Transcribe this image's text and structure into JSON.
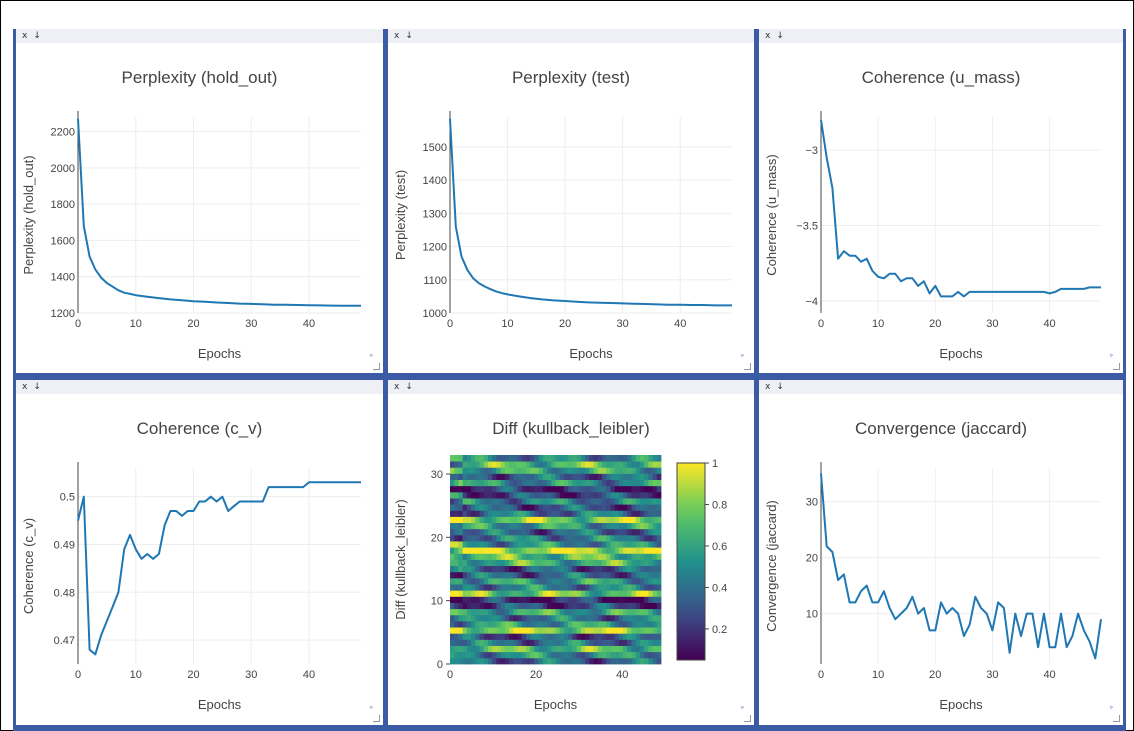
{
  "toolbar": {
    "close_label": "x",
    "pin_label": "↓"
  },
  "colors": {
    "line": "#1f77b4",
    "panel_border": "#3b5ba5",
    "grid": "#eeeeee"
  },
  "chart_data": [
    {
      "type": "line",
      "title": "Perplexity (hold_out)",
      "xlabel": "Epochs",
      "ylabel": "Perplexity (hold_out)",
      "xlim": [
        0,
        49
      ],
      "ylim": [
        1200,
        2280
      ],
      "xticks": [
        0,
        10,
        20,
        30,
        40
      ],
      "yticks": [
        1200,
        1400,
        1600,
        1800,
        2000,
        2200
      ],
      "grid": true,
      "x": [
        0,
        1,
        2,
        3,
        4,
        5,
        6,
        7,
        8,
        9,
        10,
        12,
        14,
        16,
        18,
        20,
        22,
        24,
        26,
        28,
        30,
        32,
        34,
        36,
        38,
        40,
        42,
        44,
        46,
        48,
        49
      ],
      "y": [
        2270,
        1680,
        1510,
        1440,
        1395,
        1365,
        1345,
        1325,
        1312,
        1305,
        1298,
        1290,
        1282,
        1275,
        1270,
        1265,
        1262,
        1258,
        1255,
        1252,
        1250,
        1248,
        1246,
        1245,
        1244,
        1243,
        1242,
        1241,
        1240,
        1240,
        1240
      ]
    },
    {
      "type": "line",
      "title": "Perplexity (test)",
      "xlabel": "Epochs",
      "ylabel": "Perplexity (test)",
      "xlim": [
        0,
        49
      ],
      "ylim": [
        1000,
        1590
      ],
      "xticks": [
        0,
        10,
        20,
        30,
        40
      ],
      "yticks": [
        1000,
        1100,
        1200,
        1300,
        1400,
        1500
      ],
      "grid": true,
      "x": [
        0,
        1,
        2,
        3,
        4,
        5,
        6,
        7,
        8,
        9,
        10,
        12,
        14,
        16,
        18,
        20,
        22,
        24,
        26,
        28,
        30,
        32,
        34,
        36,
        38,
        40,
        42,
        44,
        46,
        48,
        49
      ],
      "y": [
        1585,
        1260,
        1170,
        1130,
        1105,
        1090,
        1080,
        1072,
        1065,
        1060,
        1056,
        1050,
        1045,
        1041,
        1038,
        1036,
        1034,
        1032,
        1031,
        1030,
        1029,
        1028,
        1027,
        1026,
        1025,
        1025,
        1024,
        1024,
        1023,
        1023,
        1023
      ]
    },
    {
      "type": "line",
      "title": "Coherence (u_mass)",
      "xlabel": "Epochs",
      "ylabel": "Coherence (u_mass)",
      "xlim": [
        0,
        49
      ],
      "ylim": [
        -4.08,
        -2.78
      ],
      "xticks": [
        0,
        10,
        20,
        30,
        40
      ],
      "yticks": [
        -4,
        -3.5,
        -3
      ],
      "ytick_labels": [
        "−4",
        "−3.5",
        "−3"
      ],
      "grid": true,
      "x": [
        0,
        1,
        2,
        3,
        4,
        5,
        6,
        7,
        8,
        9,
        10,
        11,
        12,
        13,
        14,
        15,
        16,
        17,
        18,
        19,
        20,
        21,
        22,
        23,
        24,
        25,
        26,
        27,
        28,
        29,
        30,
        31,
        32,
        33,
        34,
        35,
        36,
        37,
        38,
        39,
        40,
        41,
        42,
        43,
        44,
        45,
        46,
        47,
        48,
        49
      ],
      "y": [
        -2.8,
        -3.05,
        -3.25,
        -3.72,
        -3.67,
        -3.7,
        -3.7,
        -3.74,
        -3.72,
        -3.8,
        -3.84,
        -3.85,
        -3.82,
        -3.82,
        -3.87,
        -3.85,
        -3.85,
        -3.9,
        -3.87,
        -3.95,
        -3.9,
        -3.97,
        -3.97,
        -3.97,
        -3.94,
        -3.97,
        -3.94,
        -3.94,
        -3.94,
        -3.94,
        -3.94,
        -3.94,
        -3.94,
        -3.94,
        -3.94,
        -3.94,
        -3.94,
        -3.94,
        -3.94,
        -3.94,
        -3.95,
        -3.94,
        -3.92,
        -3.92,
        -3.92,
        -3.92,
        -3.92,
        -3.91,
        -3.91,
        -3.91
      ]
    },
    {
      "type": "line",
      "title": "Coherence (c_v)",
      "xlabel": "Epochs",
      "ylabel": "Coherence (c_v)",
      "xlim": [
        0,
        49
      ],
      "ylim": [
        0.465,
        0.506
      ],
      "xticks": [
        0,
        10,
        20,
        30,
        40
      ],
      "yticks": [
        0.47,
        0.48,
        0.49,
        0.5
      ],
      "grid": true,
      "x": [
        0,
        1,
        2,
        3,
        4,
        5,
        6,
        7,
        8,
        9,
        10,
        11,
        12,
        13,
        14,
        15,
        16,
        17,
        18,
        19,
        20,
        21,
        22,
        23,
        24,
        25,
        26,
        27,
        28,
        29,
        30,
        31,
        32,
        33,
        34,
        35,
        36,
        37,
        38,
        39,
        40,
        41,
        42,
        43,
        44,
        45,
        46,
        47,
        48,
        49
      ],
      "y": [
        0.495,
        0.5,
        0.468,
        0.467,
        0.471,
        0.474,
        0.477,
        0.48,
        0.489,
        0.492,
        0.489,
        0.487,
        0.488,
        0.487,
        0.488,
        0.494,
        0.497,
        0.497,
        0.496,
        0.497,
        0.497,
        0.499,
        0.499,
        0.5,
        0.499,
        0.5,
        0.497,
        0.498,
        0.499,
        0.499,
        0.499,
        0.499,
        0.499,
        0.502,
        0.502,
        0.502,
        0.502,
        0.502,
        0.502,
        0.502,
        0.503,
        0.503,
        0.503,
        0.503,
        0.503,
        0.503,
        0.503,
        0.503,
        0.503,
        0.503
      ]
    },
    {
      "type": "heatmap",
      "title": "Diff (kullback_leibler)",
      "xlabel": "Epochs",
      "ylabel": "Diff (kullback_leibler)",
      "xlim": [
        0,
        49
      ],
      "ylim": [
        0,
        33
      ],
      "xticks": [
        0,
        20,
        40
      ],
      "yticks": [
        0,
        10,
        20,
        30
      ],
      "colorbar": {
        "min": 0.05,
        "max": 1,
        "ticks": [
          0.2,
          0.4,
          0.6,
          0.8,
          1
        ]
      },
      "colorscale": "viridis",
      "row_profiles": [
        0.35,
        0.5,
        0.7,
        0.4,
        0.3,
        0.85,
        0.55,
        0.4,
        0.6,
        0.25,
        0.15,
        0.75,
        0.45,
        0.55,
        0.35,
        0.3,
        0.65,
        0.7,
        0.9,
        0.5,
        0.45,
        0.35,
        0.55,
        0.8,
        0.4,
        0.3,
        0.45,
        0.25,
        0.2,
        0.5,
        0.35,
        0.6,
        0.7,
        0.45
      ]
    },
    {
      "type": "line",
      "title": "Convergence (jaccard)",
      "xlabel": "Epochs",
      "ylabel": "Convergence (jaccard)",
      "xlim": [
        0,
        49
      ],
      "ylim": [
        1,
        36
      ],
      "xticks": [
        0,
        10,
        20,
        30,
        40
      ],
      "yticks": [
        10,
        20,
        30
      ],
      "grid": true,
      "x": [
        0,
        1,
        2,
        3,
        4,
        5,
        6,
        7,
        8,
        9,
        10,
        11,
        12,
        13,
        14,
        15,
        16,
        17,
        18,
        19,
        20,
        21,
        22,
        23,
        24,
        25,
        26,
        27,
        28,
        29,
        30,
        31,
        32,
        33,
        34,
        35,
        36,
        37,
        38,
        39,
        40,
        41,
        42,
        43,
        44,
        45,
        46,
        47,
        48,
        49
      ],
      "y": [
        35,
        22,
        21,
        16,
        17,
        12,
        12,
        14,
        15,
        12,
        12,
        14,
        11,
        9,
        10,
        11,
        13,
        10,
        11,
        7,
        7,
        12,
        10,
        11,
        10,
        6,
        8,
        13,
        11,
        10,
        7,
        12,
        11,
        3,
        10,
        6,
        10,
        10,
        4,
        10,
        4,
        4,
        10,
        4,
        6,
        10,
        7,
        5,
        2,
        9
      ]
    }
  ]
}
